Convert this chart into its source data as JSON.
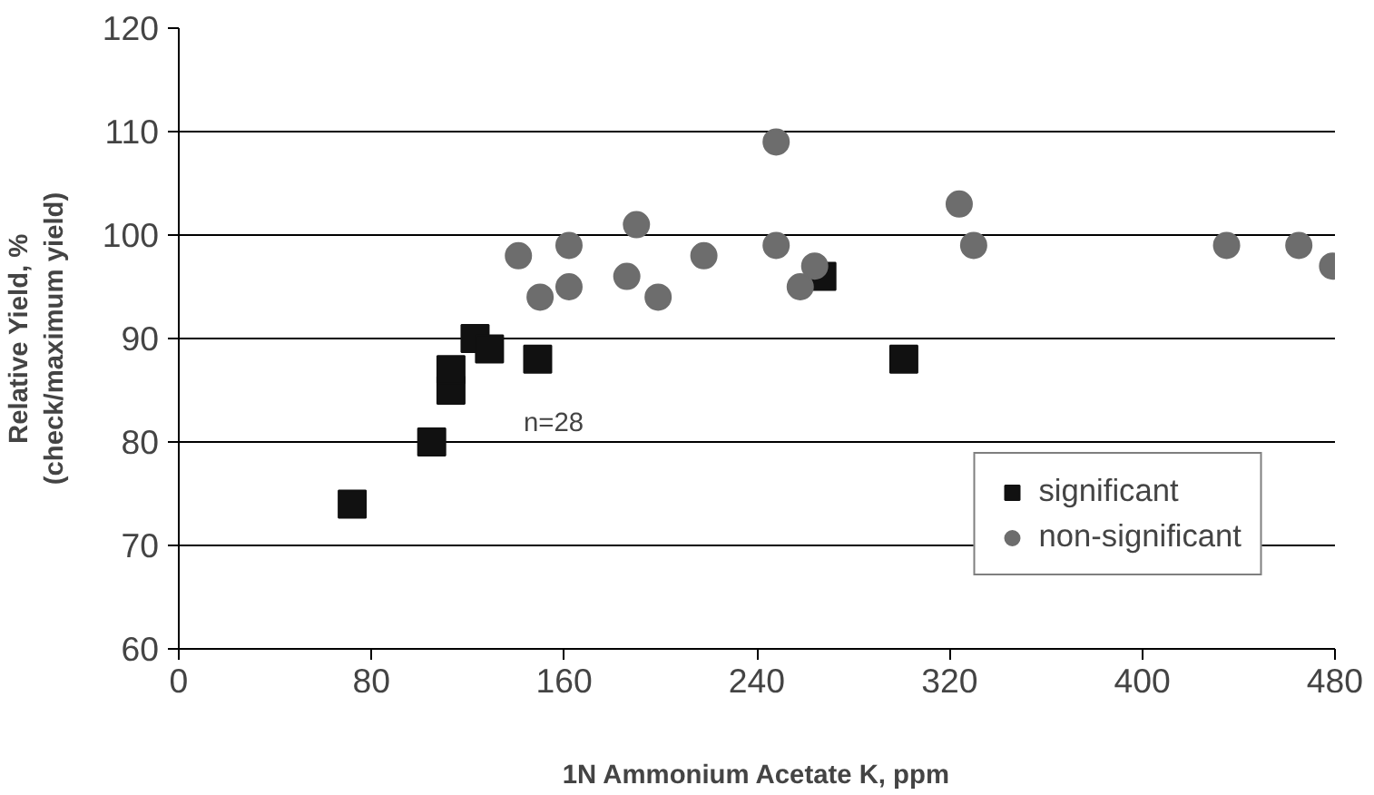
{
  "chart_data": {
    "type": "scatter",
    "xlabel": "1N Ammonium Acetate K, ppm",
    "ylabel": "Relative Yield, %\n(check/maximum yield)",
    "xlim": [
      0,
      480
    ],
    "xticks": [
      0,
      80,
      160,
      240,
      320,
      400,
      480
    ],
    "ylim": [
      60,
      120
    ],
    "yticks": [
      60,
      70,
      80,
      90,
      100,
      110,
      120
    ],
    "grid": "y",
    "legend": "bottom right",
    "series": [
      {
        "name": "significant",
        "color": "#111111",
        "marker": "square",
        "x": [
          72,
          105,
          113,
          113,
          123,
          129,
          149,
          267,
          301
        ],
        "values": [
          74,
          80,
          85,
          87,
          90,
          89,
          88,
          96,
          88
        ]
      },
      {
        "name": "non-significant",
        "color": "#6d6d6d",
        "marker": "circle",
        "x": [
          141,
          162,
          190,
          218,
          150,
          162,
          186,
          199,
          248,
          248,
          258,
          264,
          324,
          330,
          435,
          465,
          479
        ],
        "values": [
          98,
          99,
          101,
          98,
          94,
          95,
          96,
          94,
          109,
          99,
          95,
          97,
          103,
          99,
          99,
          99,
          97
        ]
      }
    ],
    "annotations": [
      "n=28"
    ]
  }
}
